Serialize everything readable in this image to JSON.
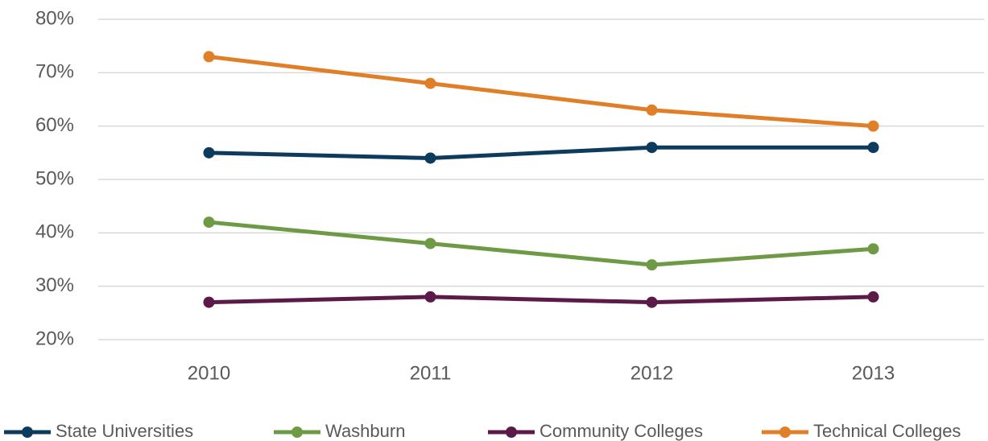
{
  "chart_data": {
    "type": "line",
    "categories": [
      "2010",
      "2011",
      "2012",
      "2013"
    ],
    "series": [
      {
        "name": "State Universities",
        "color": "#0d3b5e",
        "values": [
          55,
          54,
          56,
          56
        ]
      },
      {
        "name": "Washburn",
        "color": "#6e9a45",
        "values": [
          42,
          38,
          34,
          37
        ]
      },
      {
        "name": "Community Colleges",
        "color": "#5c1a48",
        "values": [
          27,
          28,
          27,
          28
        ]
      },
      {
        "name": "Technical Colleges",
        "color": "#e07f27",
        "values": [
          73,
          68,
          63,
          60
        ]
      }
    ],
    "ylim": [
      20,
      80
    ],
    "yticks": [
      {
        "value": 20,
        "label": "20%"
      },
      {
        "value": 30,
        "label": "30%"
      },
      {
        "value": 40,
        "label": "40%"
      },
      {
        "value": 50,
        "label": "50%"
      },
      {
        "value": 60,
        "label": "60%"
      },
      {
        "value": 70,
        "label": "70%"
      },
      {
        "value": 80,
        "label": "80%"
      }
    ],
    "grid": true,
    "legend": "bottom"
  }
}
